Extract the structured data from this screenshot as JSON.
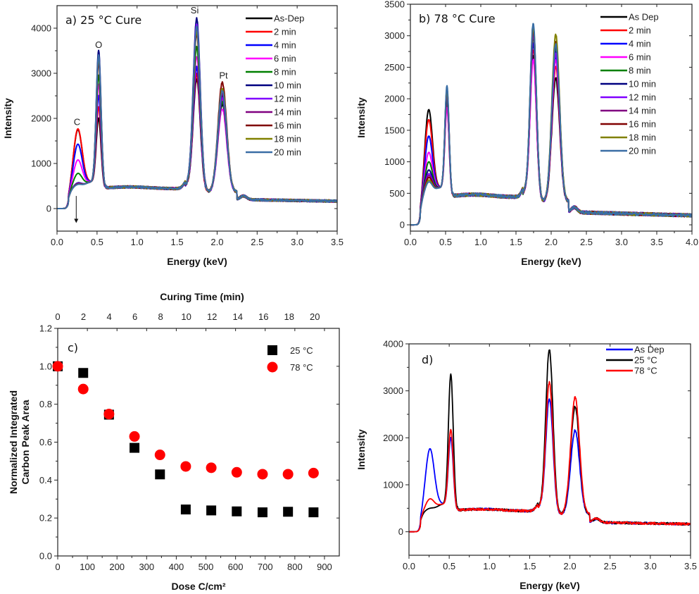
{
  "chart_data": [
    {
      "id": "a",
      "type": "line",
      "title": "a) 25 °C Cure",
      "xlabel": "Energy (keV)",
      "ylabel": "Intensity",
      "xlim": [
        0.0,
        3.5
      ],
      "ylim": [
        -500,
        4500
      ],
      "xticks": [
        "0.0",
        "0.5",
        "1.0",
        "1.5",
        "2.0",
        "2.5",
        "3.0",
        "3.5"
      ],
      "yticks": [
        "0",
        "1000",
        "2000",
        "3000",
        "4000"
      ],
      "legend_position": "top-right",
      "peak_labels": [
        {
          "text": "C",
          "x": 0.25,
          "y": 1850
        },
        {
          "text": "O",
          "x": 0.52,
          "y": 3560
        },
        {
          "text": "Si",
          "x": 1.72,
          "y": 4330
        },
        {
          "text": "Pt",
          "x": 2.08,
          "y": 2880
        }
      ],
      "annotation_arrow": {
        "x": 0.24,
        "from": 280,
        "to": -320,
        "meaning": "carbon peak decreasing"
      },
      "series": [
        {
          "name": "As-Dep",
          "color": "#000000",
          "c_peak": 1700,
          "o_peak": 1950,
          "si_peak": 2900,
          "pt_peak": 2300
        },
        {
          "name": "2 min",
          "color": "#ff0000",
          "c_peak": 1720,
          "o_peak": 2200,
          "si_peak": 3000,
          "pt_peak": 2450
        },
        {
          "name": "4 min",
          "color": "#0000ff",
          "c_peak": 1380,
          "o_peak": 2450,
          "si_peak": 3150,
          "pt_peak": 2350
        },
        {
          "name": "6 min",
          "color": "#ff00ff",
          "c_peak": 1030,
          "o_peak": 2700,
          "si_peak": 3400,
          "pt_peak": 2200
        },
        {
          "name": "8 min",
          "color": "#008000",
          "c_peak": 730,
          "o_peak": 2900,
          "si_peak": 3600,
          "pt_peak": 2350
        },
        {
          "name": "10 min",
          "color": "#000080",
          "c_peak": 520,
          "o_peak": 3450,
          "si_peak": 4230,
          "pt_peak": 2500
        },
        {
          "name": "12 min",
          "color": "#8000ff",
          "c_peak": 510,
          "o_peak": 3300,
          "si_peak": 4100,
          "pt_peak": 2450
        },
        {
          "name": "14 min",
          "color": "#800080",
          "c_peak": 500,
          "o_peak": 3250,
          "si_peak": 4000,
          "pt_peak": 2550
        },
        {
          "name": "16 min",
          "color": "#800000",
          "c_peak": 495,
          "o_peak": 3200,
          "si_peak": 3900,
          "pt_peak": 2780
        },
        {
          "name": "18 min",
          "color": "#808000",
          "c_peak": 490,
          "o_peak": 3300,
          "si_peak": 3950,
          "pt_peak": 2650
        },
        {
          "name": "20 min",
          "color": "#3a6ea5",
          "c_peak": 485,
          "o_peak": 3350,
          "si_peak": 4050,
          "pt_peak": 2600
        }
      ]
    },
    {
      "id": "b",
      "type": "line",
      "title": "b) 78 °C Cure",
      "xlabel": "Energy (keV)",
      "ylabel": "Intensity",
      "xlim": [
        0.0,
        4.0
      ],
      "ylim": [
        -100,
        3500
      ],
      "xticks": [
        "0.0",
        "0.5",
        "1.0",
        "1.5",
        "2.0",
        "2.5",
        "3.0",
        "3.5",
        "4.0"
      ],
      "yticks": [
        "0",
        "500",
        "1000",
        "1500",
        "2000",
        "2500",
        "3000",
        "3500"
      ],
      "legend_position": "top-right",
      "series": [
        {
          "name": "As Dep",
          "color": "#000000",
          "c_peak": 1780,
          "o_peak": 1850,
          "si_peak": 2700,
          "pt_peak": 2320
        },
        {
          "name": "2 min",
          "color": "#ff0000",
          "c_peak": 1620,
          "o_peak": 1900,
          "si_peak": 2800,
          "pt_peak": 2500
        },
        {
          "name": "4 min",
          "color": "#0000ff",
          "c_peak": 1360,
          "o_peak": 1950,
          "si_peak": 2900,
          "pt_peak": 2650
        },
        {
          "name": "6 min",
          "color": "#ff00ff",
          "c_peak": 1100,
          "o_peak": 1800,
          "si_peak": 2650,
          "pt_peak": 2600
        },
        {
          "name": "8 min",
          "color": "#008000",
          "c_peak": 950,
          "o_peak": 2000,
          "si_peak": 3000,
          "pt_peak": 2800
        },
        {
          "name": "10 min",
          "color": "#000080",
          "c_peak": 820,
          "o_peak": 2050,
          "si_peak": 3100,
          "pt_peak": 2750
        },
        {
          "name": "12 min",
          "color": "#8000ff",
          "c_peak": 760,
          "o_peak": 2050,
          "si_peak": 3050,
          "pt_peak": 2700
        },
        {
          "name": "14 min",
          "color": "#800080",
          "c_peak": 730,
          "o_peak": 2080,
          "si_peak": 3100,
          "pt_peak": 2850
        },
        {
          "name": "16 min",
          "color": "#800000",
          "c_peak": 700,
          "o_peak": 2100,
          "si_peak": 3150,
          "pt_peak": 2900
        },
        {
          "name": "18 min",
          "color": "#808000",
          "c_peak": 660,
          "o_peak": 2100,
          "si_peak": 3150,
          "pt_peak": 3000
        },
        {
          "name": "20 min",
          "color": "#3a6ea5",
          "c_peak": 630,
          "o_peak": 2150,
          "si_peak": 3220,
          "pt_peak": 2850
        }
      ]
    },
    {
      "id": "c",
      "type": "scatter",
      "title": "c)",
      "xlabel": "Dose C/cm²",
      "x2label": "Curing Time (min)",
      "ylabel": "Normalized Integrated Carbon Peak Area",
      "ylabel_lines": [
        "Normalized Integrated",
        "Carbon Peak Area"
      ],
      "xlim": [
        0,
        950
      ],
      "ylim": [
        0.0,
        1.2
      ],
      "x2lim": [
        0,
        21.9
      ],
      "xticks": [
        "0",
        "100",
        "200",
        "300",
        "400",
        "500",
        "600",
        "700",
        "800",
        "900"
      ],
      "x2ticks": [
        "0",
        "2",
        "4",
        "6",
        "8",
        "10",
        "12",
        "14",
        "16",
        "18",
        "20"
      ],
      "yticks": [
        "0.0",
        "0.2",
        "0.4",
        "0.6",
        "0.8",
        "1.0",
        "1.2"
      ],
      "legend_position": "top-right",
      "x": [
        0,
        86,
        173,
        259,
        345,
        432,
        518,
        604,
        691,
        777,
        863
      ],
      "series": [
        {
          "name": "25 °C",
          "marker": "square",
          "color": "#000000",
          "values": [
            1.0,
            0.965,
            0.745,
            0.57,
            0.43,
            0.245,
            0.24,
            0.235,
            0.23,
            0.233,
            0.23
          ]
        },
        {
          "name": "78 °C",
          "marker": "circle",
          "color": "#ff0000",
          "values": [
            1.0,
            0.88,
            0.748,
            0.63,
            0.533,
            0.472,
            0.465,
            0.441,
            0.431,
            0.431,
            0.437
          ]
        }
      ]
    },
    {
      "id": "d",
      "type": "line",
      "title": "d)",
      "xlabel": "Energy (keV)",
      "ylabel": "Intensity",
      "xlim": [
        0.0,
        3.5
      ],
      "ylim": [
        -500,
        4000
      ],
      "xticks": [
        "0.0",
        "0.5",
        "1.0",
        "1.5",
        "2.0",
        "2.5",
        "3.0",
        "3.5"
      ],
      "yticks": [
        "0",
        "1000",
        "2000",
        "3000",
        "4000"
      ],
      "legend_position": "top-right",
      "series": [
        {
          "name": "As Dep",
          "color": "#0000ff",
          "c_peak": 1720,
          "o_peak": 1950,
          "si_peak": 2850,
          "pt_peak": 2150
        },
        {
          "name": "25 °C",
          "color": "#000000",
          "c_peak": 450,
          "o_peak": 3300,
          "si_peak": 3900,
          "pt_peak": 2650
        },
        {
          "name": "78 °C",
          "color": "#ff0000",
          "c_peak": 650,
          "o_peak": 2120,
          "si_peak": 3200,
          "pt_peak": 2850
        }
      ]
    }
  ]
}
